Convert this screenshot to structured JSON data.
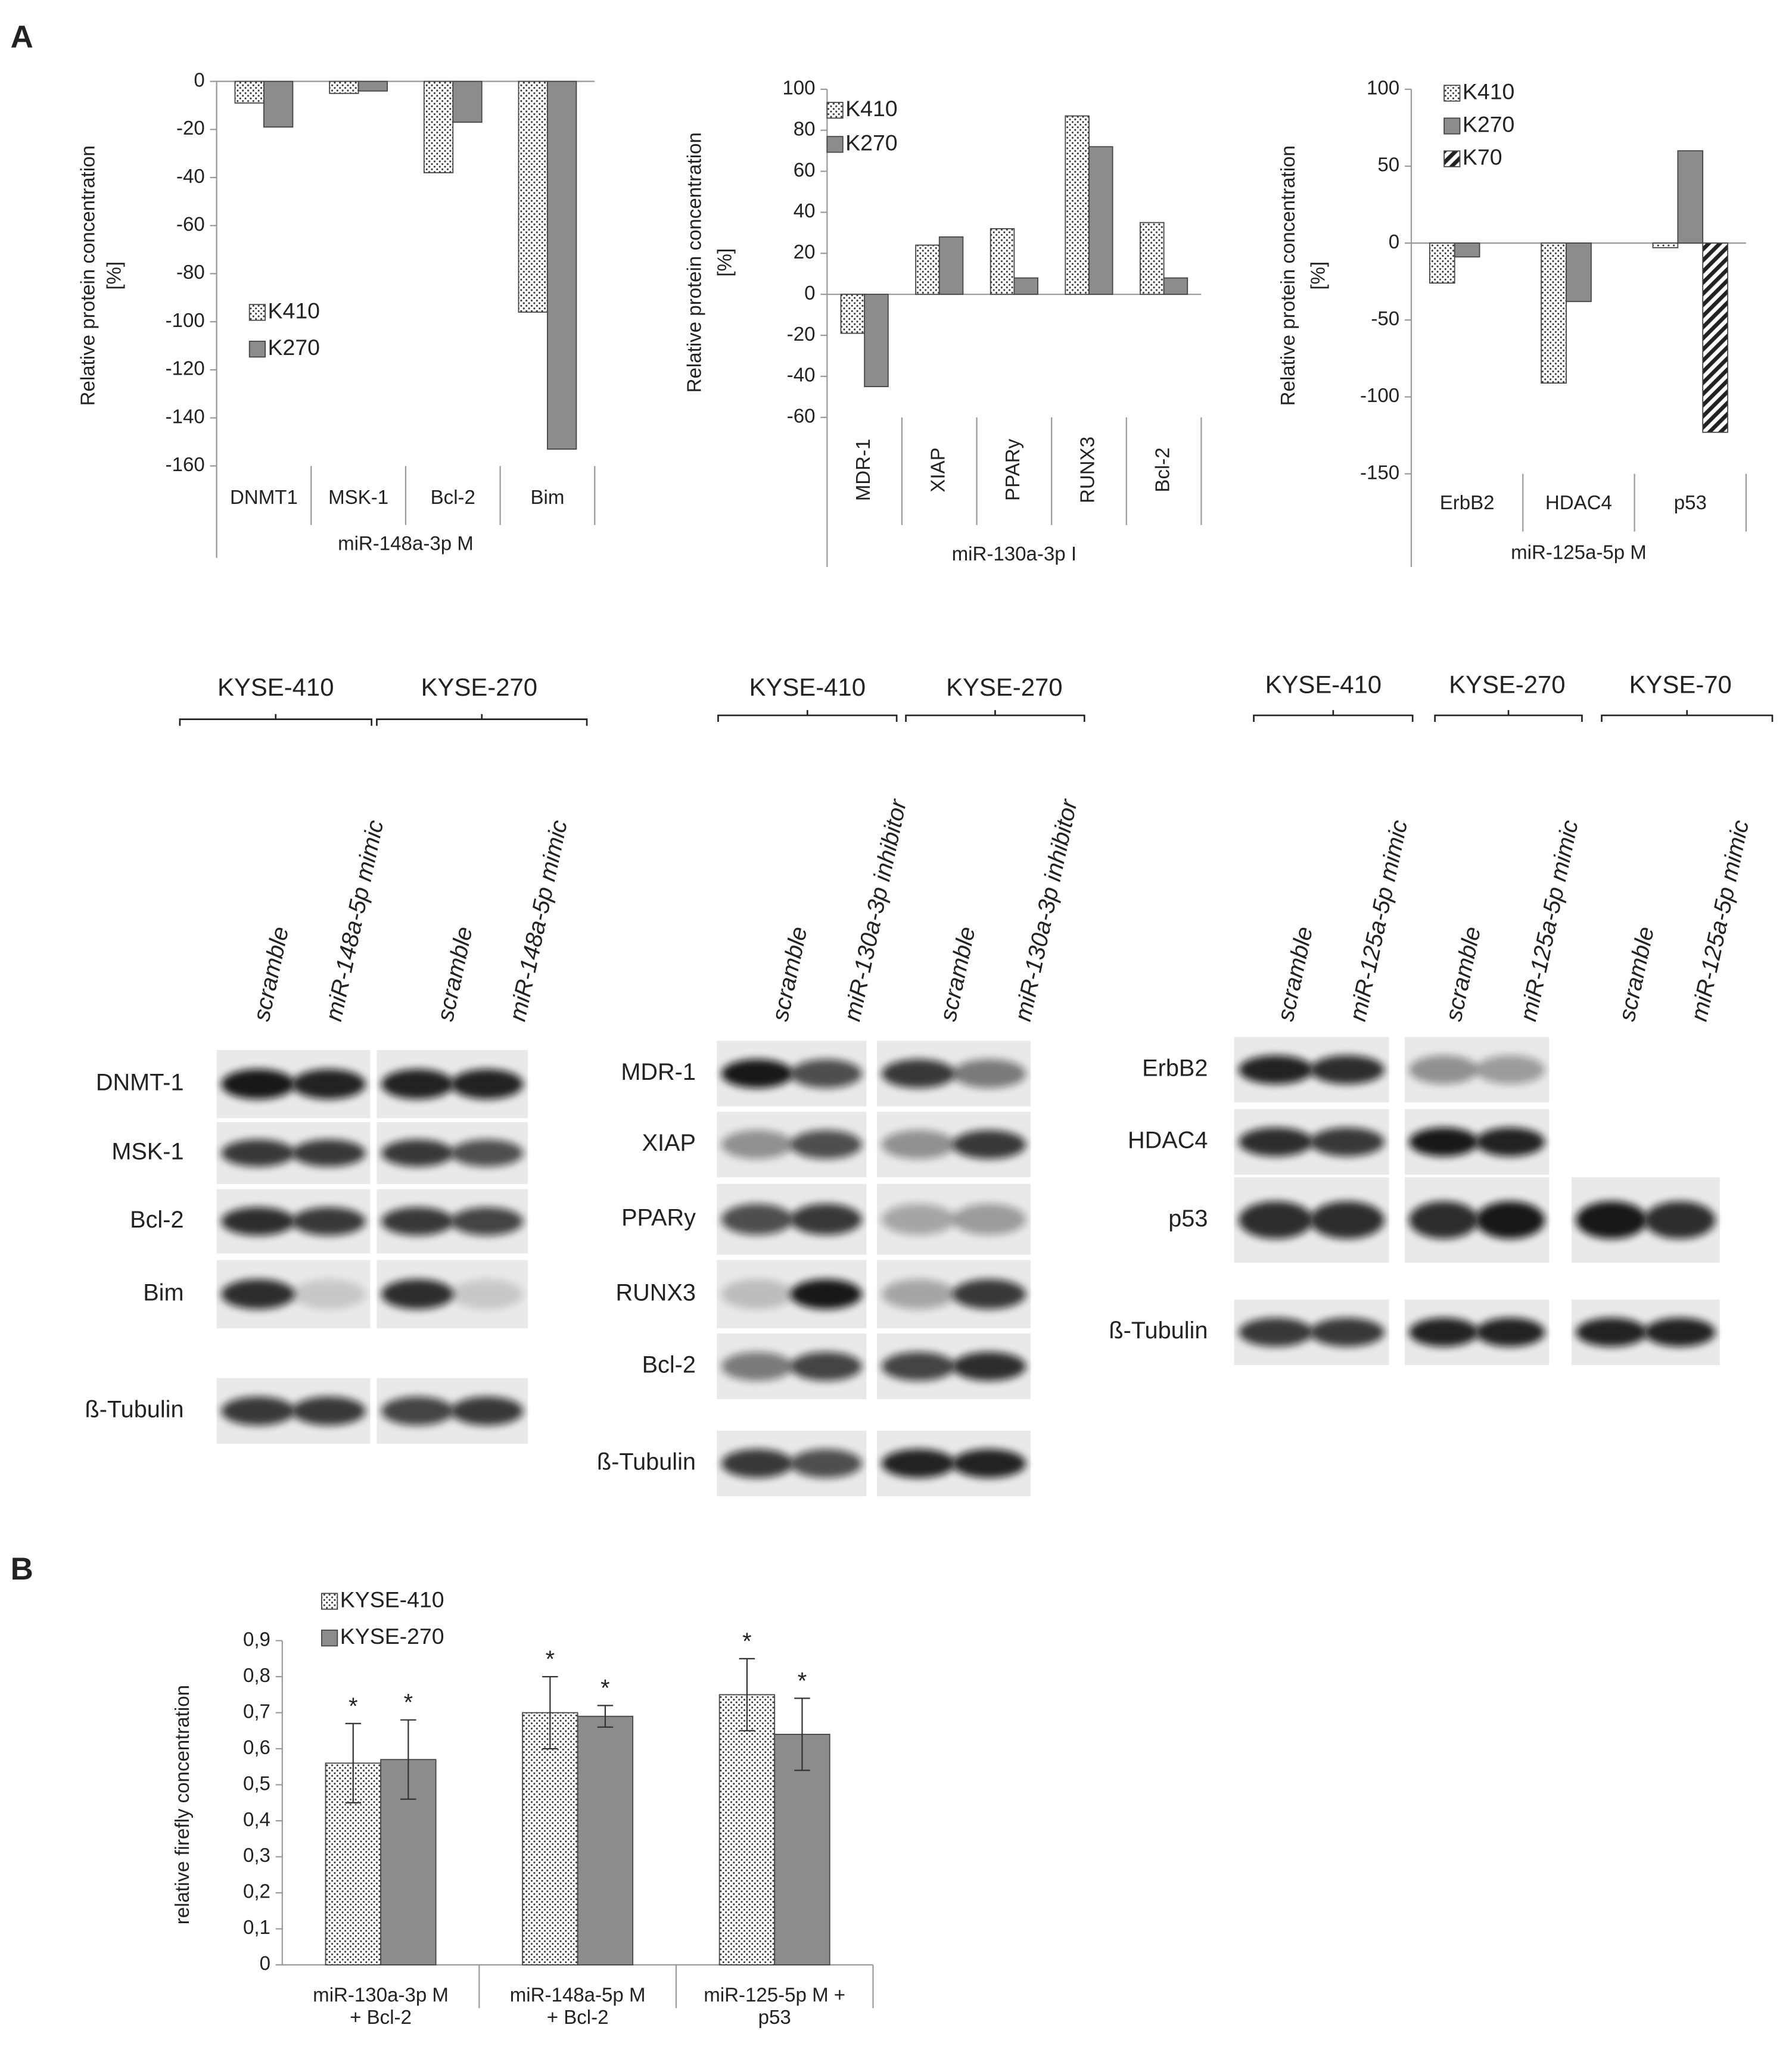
{
  "panel_labels": {
    "a": "A",
    "b": "B"
  },
  "chart_data": [
    {
      "type": "bar",
      "ylabel": "Relative protein concentration",
      "ylabel_unit": "[%]",
      "categories": [
        "DNMT1",
        "MSK-1",
        "Bcl-2",
        "Bim"
      ],
      "group_label": "miR-148a-3p M",
      "ylim": [
        -160,
        0
      ],
      "yticks": [
        0,
        -20,
        -40,
        -60,
        -80,
        -100,
        -120,
        -140,
        -160
      ],
      "series": [
        {
          "name": "K410",
          "color": "#ffffff",
          "pattern": "dots",
          "values": [
            -9,
            -5,
            -38,
            -96
          ]
        },
        {
          "name": "K270",
          "color": "#8c8c8c",
          "values": [
            -19,
            -4,
            -17,
            -153
          ]
        }
      ]
    },
    {
      "type": "bar",
      "ylabel": "Relative protein concentration",
      "ylabel_unit": "[%]",
      "categories": [
        "MDR-1",
        "XIAP",
        "PPARy",
        "RUNX3",
        "Bcl-2"
      ],
      "group_label": "miR-130a-3p I",
      "ylim": [
        -60,
        100
      ],
      "yticks": [
        100,
        80,
        60,
        40,
        20,
        0,
        -20,
        -40,
        -60
      ],
      "series": [
        {
          "name": "K410",
          "color": "#ffffff",
          "pattern": "dots",
          "values": [
            -19,
            24,
            32,
            87,
            35
          ]
        },
        {
          "name": "K270",
          "color": "#8c8c8c",
          "values": [
            -45,
            28,
            8,
            72,
            8
          ]
        }
      ]
    },
    {
      "type": "bar",
      "ylabel": "Relative protein concentration",
      "ylabel_unit": "[%]",
      "categories": [
        "ErbB2",
        "HDAC4",
        "p53"
      ],
      "group_label": "miR-125a-5p M",
      "ylim": [
        -150,
        100
      ],
      "yticks": [
        100,
        50,
        0,
        -50,
        -100,
        -150
      ],
      "series": [
        {
          "name": "K410",
          "color": "#ffffff",
          "pattern": "dots",
          "values": [
            -26,
            -91,
            -3
          ]
        },
        {
          "name": "K270",
          "color": "#8c8c8c",
          "values": [
            -9,
            -38,
            60
          ]
        },
        {
          "name": "K70",
          "color": "#ffffff",
          "pattern": "stripes",
          "values": [
            null,
            null,
            -123
          ]
        }
      ]
    },
    {
      "type": "bar",
      "ylabel": "relative firefly concentration",
      "categories": [
        "miR-130a-3p M\n+ Bcl-2",
        "miR-148a-5p M\n+ Bcl-2",
        "miR-125-5p M +\np53"
      ],
      "ylim": [
        0,
        0.9
      ],
      "yticks": [
        0,
        {
          "value": 0.1,
          "label": "0,1"
        },
        {
          "value": 0.2,
          "label": "0,2"
        },
        {
          "value": 0.3,
          "label": "0,3"
        },
        {
          "value": 0.4,
          "label": "0,4"
        },
        {
          "value": 0.5,
          "label": "0,5"
        },
        {
          "value": 0.6,
          "label": "0,6"
        },
        {
          "value": 0.7,
          "label": "0,7"
        },
        {
          "value": 0.8,
          "label": "0,8"
        },
        {
          "value": 0.9,
          "label": "0,9"
        }
      ],
      "series": [
        {
          "name": "KYSE-410",
          "color": "#ffffff",
          "pattern": "dots",
          "values": [
            0.56,
            0.7,
            0.75
          ],
          "errors": [
            0.11,
            0.1,
            0.1
          ],
          "significance": [
            "*",
            "*",
            "*"
          ]
        },
        {
          "name": "KYSE-270",
          "color": "#8c8c8c",
          "values": [
            0.57,
            0.69,
            0.64
          ],
          "errors": [
            0.11,
            0.03,
            0.1
          ],
          "significance": [
            "*",
            "*",
            "*"
          ]
        }
      ]
    }
  ],
  "blots": [
    {
      "cell_lines": [
        "KYSE-410",
        "KYSE-270"
      ],
      "lanes": [
        "scramble",
        "miR-148a-5p mimic",
        "scramble",
        "miR-148a-5p mimic"
      ],
      "rows": [
        "DNMT-1",
        "MSK-1",
        "Bcl-2",
        "Bim",
        "ß-Tubulin"
      ]
    },
    {
      "cell_lines": [
        "KYSE-410",
        "KYSE-270"
      ],
      "lanes": [
        "scramble",
        "miR-130a-3p inhibitor",
        "scramble",
        "miR-130a-3p inhibitor"
      ],
      "rows": [
        "MDR-1",
        "XIAP",
        "PPARy",
        "RUNX3",
        "Bcl-2",
        "ß-Tubulin"
      ]
    },
    {
      "cell_lines": [
        "KYSE-410",
        "KYSE-270",
        "KYSE-70"
      ],
      "lanes": [
        "scramble",
        "miR-125a-5p mimic",
        "scramble",
        "miR-125a-5p mimic",
        "scramble",
        "miR-125a-5p mimic"
      ],
      "rows": [
        "ErbB2",
        "HDAC4",
        "p53",
        "ß-Tubulin"
      ]
    }
  ]
}
